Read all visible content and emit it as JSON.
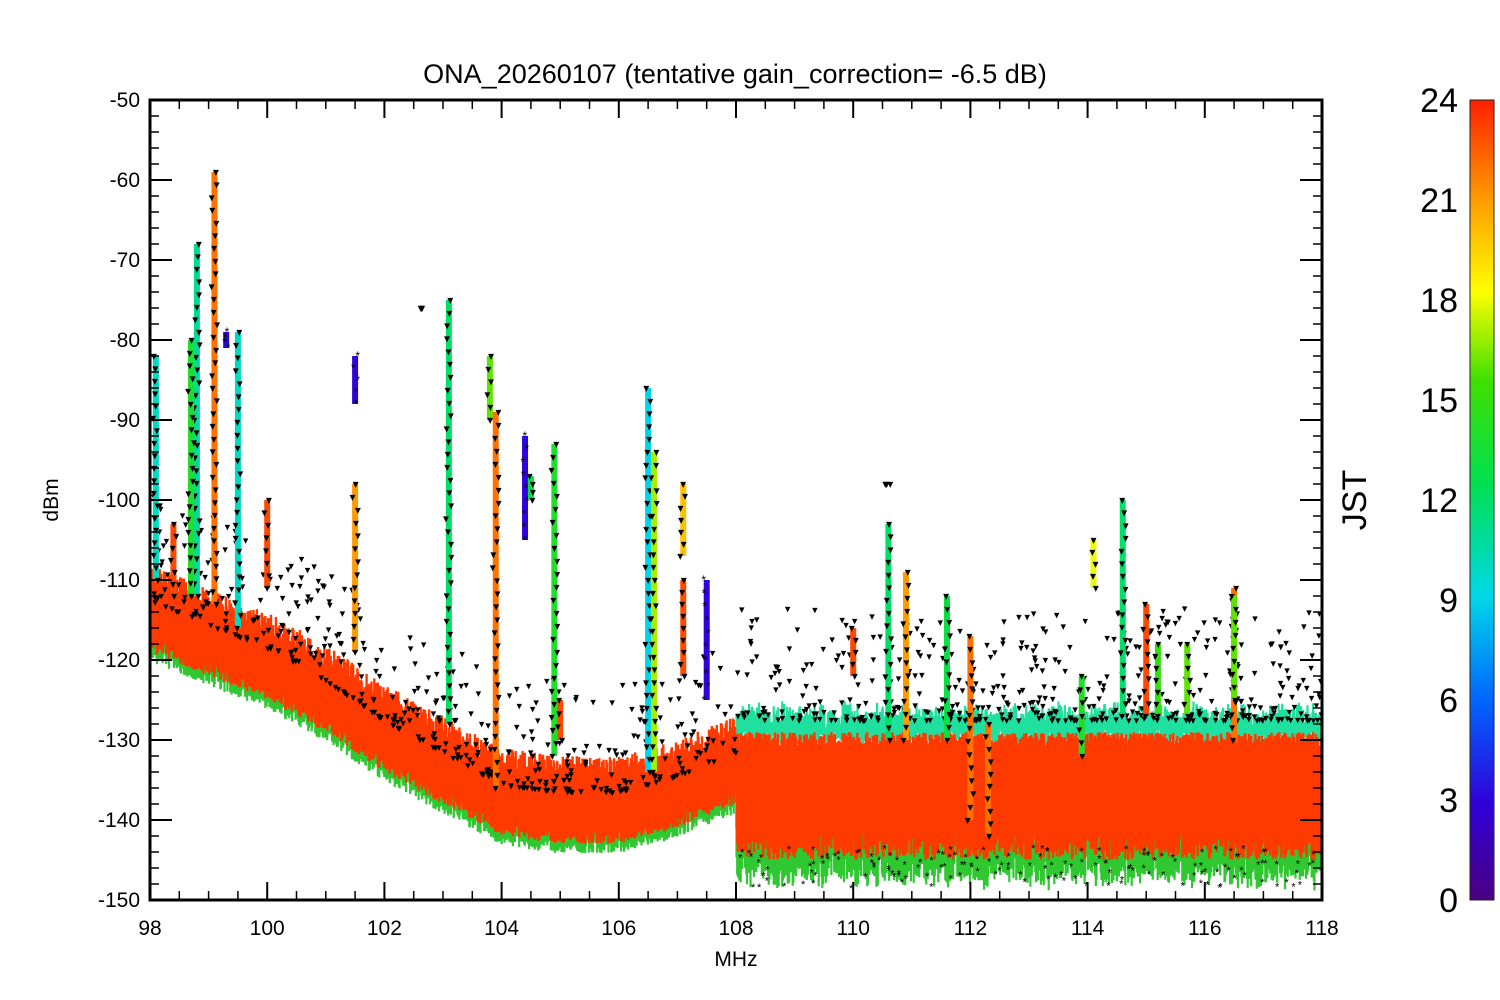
{
  "chart_data": {
    "type": "scatter",
    "title": "ONA_20260107 (tentative gain_correction= -6.5 dB)",
    "xlabel": "MHz",
    "ylabel": "dBm",
    "xlim": [
      98,
      118
    ],
    "ylim": [
      -150,
      -50
    ],
    "x_ticks": [
      98,
      100,
      102,
      104,
      106,
      108,
      110,
      112,
      114,
      116,
      118
    ],
    "y_ticks": [
      -50,
      -60,
      -70,
      -80,
      -90,
      -100,
      -110,
      -120,
      -130,
      -140,
      -150
    ],
    "colorbar": {
      "label": "JST",
      "range": [
        0,
        24
      ],
      "ticks": [
        0,
        3,
        6,
        9,
        12,
        15,
        18,
        21,
        24
      ],
      "colormap": "rainbow (purple→blue→cyan→green→yellow→orange→red)"
    },
    "noise_floor": [
      {
        "x": 98.0,
        "y": -115
      },
      {
        "x": 99.0,
        "y": -118
      },
      {
        "x": 100.0,
        "y": -121
      },
      {
        "x": 101.0,
        "y": -125
      },
      {
        "x": 102.0,
        "y": -130
      },
      {
        "x": 103.0,
        "y": -134
      },
      {
        "x": 104.0,
        "y": -138
      },
      {
        "x": 105.0,
        "y": -139
      },
      {
        "x": 106.0,
        "y": -139
      },
      {
        "x": 107.0,
        "y": -137
      },
      {
        "x": 108.0,
        "y": -134
      },
      {
        "x": 110.0,
        "y": -136
      },
      {
        "x": 112.0,
        "y": -137
      },
      {
        "x": 114.0,
        "y": -136
      },
      {
        "x": 116.0,
        "y": -135
      },
      {
        "x": 118.0,
        "y": -136
      }
    ],
    "band_upper_floor_start_mhz": 108.0,
    "signals": [
      {
        "x": 98.1,
        "peak": -82,
        "base": -110,
        "jst": 10
      },
      {
        "x": 98.4,
        "peak": -103,
        "base": -112,
        "jst": 23
      },
      {
        "x": 98.8,
        "peak": -68,
        "base": -112,
        "jst": 11
      },
      {
        "x": 98.7,
        "peak": -80,
        "base": -112,
        "jst": 14
      },
      {
        "x": 99.1,
        "peak": -59,
        "base": -113,
        "jst": 22
      },
      {
        "x": 99.3,
        "peak": -79,
        "base": -81,
        "jst": 3
      },
      {
        "x": 99.5,
        "peak": -79,
        "base": -116,
        "jst": 10
      },
      {
        "x": 100.0,
        "peak": -100,
        "base": -111,
        "jst": 23
      },
      {
        "x": 101.5,
        "peak": -82,
        "base": -88,
        "jst": 3
      },
      {
        "x": 101.5,
        "peak": -98,
        "base": -119,
        "jst": 21
      },
      {
        "x": 102.6,
        "peak": -76,
        "base": -76,
        "jst": 13
      },
      {
        "x": 103.1,
        "peak": -75,
        "base": -128,
        "jst": 12
      },
      {
        "x": 103.8,
        "peak": -82,
        "base": -90,
        "jst": 16
      },
      {
        "x": 103.9,
        "peak": -89,
        "base": -136,
        "jst": 22
      },
      {
        "x": 104.4,
        "peak": -92,
        "base": -105,
        "jst": 3
      },
      {
        "x": 104.5,
        "peak": -97,
        "base": -100,
        "jst": 13
      },
      {
        "x": 104.9,
        "peak": -93,
        "base": -132,
        "jst": 14
      },
      {
        "x": 105.0,
        "peak": -125,
        "base": -130,
        "jst": 23
      },
      {
        "x": 106.5,
        "peak": -86,
        "base": -134,
        "jst": 9
      },
      {
        "x": 106.6,
        "peak": -94,
        "base": -134,
        "jst": 17
      },
      {
        "x": 107.1,
        "peak": -98,
        "base": -107,
        "jst": 20
      },
      {
        "x": 107.1,
        "peak": -110,
        "base": -122,
        "jst": 23
      },
      {
        "x": 107.5,
        "peak": -110,
        "base": -125,
        "jst": 3
      },
      {
        "x": 110.0,
        "peak": -116,
        "base": -122,
        "jst": 23
      },
      {
        "x": 110.6,
        "peak": -98,
        "base": -98,
        "jst": 23
      },
      {
        "x": 110.6,
        "peak": -103,
        "base": -130,
        "jst": 12
      },
      {
        "x": 110.9,
        "peak": -109,
        "base": -130,
        "jst": 21
      },
      {
        "x": 111.6,
        "peak": -112,
        "base": -130,
        "jst": 13
      },
      {
        "x": 112.0,
        "peak": -117,
        "base": -140,
        "jst": 22
      },
      {
        "x": 112.3,
        "peak": -128,
        "base": -142,
        "jst": 22
      },
      {
        "x": 113.9,
        "peak": -122,
        "base": -132,
        "jst": 14
      },
      {
        "x": 114.1,
        "peak": -105,
        "base": -111,
        "jst": 18
      },
      {
        "x": 114.6,
        "peak": -100,
        "base": -127,
        "jst": 12
      },
      {
        "x": 115.0,
        "peak": -113,
        "base": -127,
        "jst": 23
      },
      {
        "x": 115.2,
        "peak": -118,
        "base": -127,
        "jst": 15
      },
      {
        "x": 115.7,
        "peak": -118,
        "base": -127,
        "jst": 16
      },
      {
        "x": 116.5,
        "peak": -111,
        "base": -130,
        "jst": 22
      },
      {
        "x": 116.5,
        "peak": -112,
        "base": -125,
        "jst": 16
      }
    ]
  }
}
